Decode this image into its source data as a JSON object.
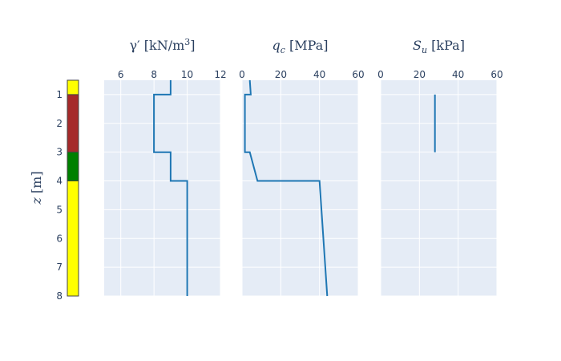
{
  "colors": {
    "plot_bg": "#e5ecf6",
    "grid": "#ffffff",
    "line": "#1f77b4",
    "text": "#2a3f5f",
    "layer_frame": "#444444"
  },
  "chart_data": [
    {
      "type": "bar",
      "name": "soil-column",
      "orientation": "vertical-stack",
      "ylabel": "z [m]",
      "ylim": [
        8,
        0.5
      ],
      "y_ticks": [
        1,
        2,
        3,
        4,
        5,
        6,
        7,
        8
      ],
      "layers": [
        {
          "top": 0.5,
          "bottom": 1,
          "color": "#ffff00"
        },
        {
          "top": 1,
          "bottom": 3,
          "color": "#a52a2a"
        },
        {
          "top": 3,
          "bottom": 4,
          "color": "#008000"
        },
        {
          "top": 4,
          "bottom": 8,
          "color": "#ffff00"
        }
      ]
    },
    {
      "type": "line",
      "name": "unit-weight",
      "title_main": "γ′ [kN/m",
      "title_sup": "3",
      "title_end": "]",
      "xlim": [
        5,
        12
      ],
      "x_ticks": [
        6,
        8,
        10,
        12
      ],
      "ylim": [
        8,
        0.5
      ],
      "grid": true,
      "x": [
        9,
        9,
        8,
        8,
        9,
        9,
        10,
        10
      ],
      "y": [
        0.5,
        1,
        1,
        3,
        3,
        4,
        4,
        8
      ]
    },
    {
      "type": "line",
      "name": "cone-resistance",
      "title_main": "q",
      "title_sub": "c",
      "title_end": " [MPa]",
      "xlim": [
        0,
        60
      ],
      "x_ticks": [
        0,
        20,
        40,
        60
      ],
      "ylim": [
        8,
        0.5
      ],
      "grid": true,
      "x": [
        4,
        4.5,
        1.5,
        1.5,
        4,
        8,
        40,
        44
      ],
      "y": [
        0.5,
        1,
        1,
        3,
        3,
        4,
        4,
        8
      ]
    },
    {
      "type": "line",
      "name": "undrained-shear-strength",
      "title_main": "S",
      "title_sub": "u",
      "title_end": " [kPa]",
      "xlim": [
        0,
        60
      ],
      "x_ticks": [
        0,
        20,
        40,
        60
      ],
      "ylim": [
        8,
        0.5
      ],
      "grid": true,
      "x": [
        28,
        28
      ],
      "y": [
        1,
        3
      ]
    }
  ]
}
